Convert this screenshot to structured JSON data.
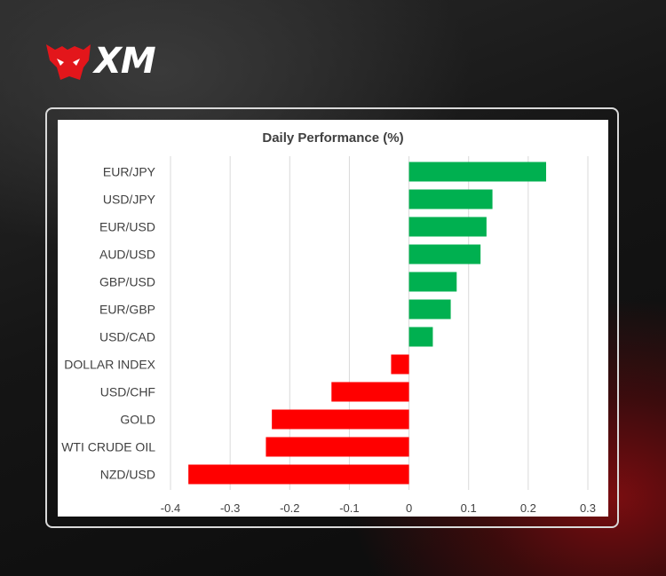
{
  "brand": {
    "logo_text": "XM"
  },
  "chart_data": {
    "type": "bar",
    "orientation": "horizontal",
    "title": "Daily Performance (%)",
    "categories": [
      "EUR/JPY",
      "USD/JPY",
      "EUR/USD",
      "AUD/USD",
      "GBP/USD",
      "EUR/GBP",
      "USD/CAD",
      "DOLLAR INDEX",
      "USD/CHF",
      "GOLD",
      "WTI CRUDE OIL",
      "NZD/USD"
    ],
    "values": [
      0.23,
      0.14,
      0.13,
      0.12,
      0.08,
      0.07,
      0.04,
      -0.03,
      -0.13,
      -0.23,
      -0.24,
      -0.37
    ],
    "xlim": [
      -0.4,
      0.3
    ],
    "xticks": [
      -0.4,
      -0.3,
      -0.2,
      -0.1,
      0,
      0.1,
      0.2,
      0.3
    ],
    "xticklabels": [
      "-0.4",
      "-0.3",
      "-0.2",
      "-0.1",
      "0",
      "0.1",
      "0.2",
      "0.3"
    ],
    "grid": "vertical",
    "colors": {
      "positive": "#00b050",
      "negative": "#ff0000",
      "grid": "#d9d9d9"
    }
  }
}
